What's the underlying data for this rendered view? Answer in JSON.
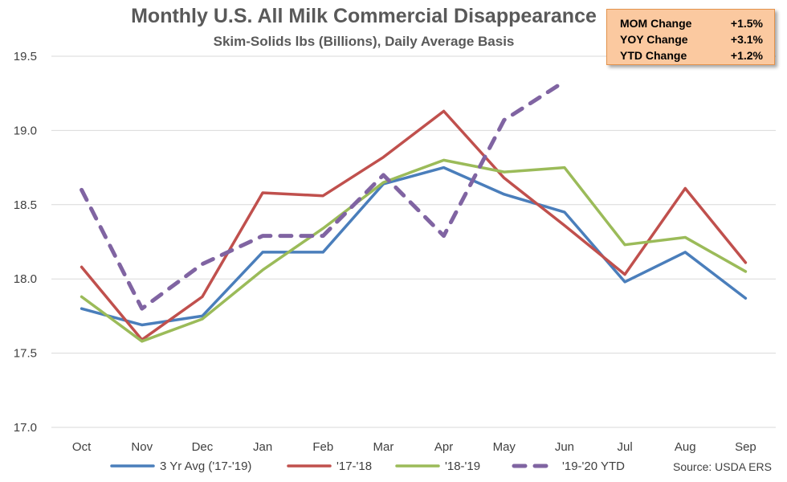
{
  "title": "Monthly U.S. All Milk Commercial Disappearance",
  "subtitle": "Skim-Solids lbs (Billions), Daily Average Basis",
  "changes": [
    {
      "label": "MOM Change",
      "value": "+1.5%"
    },
    {
      "label": "YOY Change",
      "value": "+3.1%"
    },
    {
      "label": "YTD Change",
      "value": "+1.2%"
    }
  ],
  "source": "Source: USDA ERS",
  "chart_data": {
    "type": "line",
    "categories": [
      "Oct",
      "Nov",
      "Dec",
      "Jan",
      "Feb",
      "Mar",
      "Apr",
      "May",
      "Jun",
      "Jul",
      "Aug",
      "Sep"
    ],
    "ylim": [
      17.0,
      19.5
    ],
    "yticks": [
      "17.0",
      "17.5",
      "18.0",
      "18.5",
      "19.0",
      "19.5"
    ],
    "grid": true,
    "legend_position": "bottom",
    "series": [
      {
        "name": "3 Yr Avg ('17-'19)",
        "color": "#4a7ebb",
        "dashed": false,
        "values": [
          17.8,
          17.69,
          17.75,
          18.18,
          18.18,
          18.64,
          18.75,
          18.57,
          18.45,
          17.98,
          18.18,
          17.87
        ]
      },
      {
        "name": "'17-'18",
        "color": "#c0504d",
        "dashed": false,
        "values": [
          18.08,
          17.59,
          17.88,
          18.58,
          18.56,
          18.82,
          19.13,
          18.68,
          18.36,
          18.03,
          18.61,
          18.11
        ]
      },
      {
        "name": "'18-'19",
        "color": "#9bbb59",
        "dashed": false,
        "values": [
          17.88,
          17.58,
          17.73,
          18.06,
          18.34,
          18.65,
          18.8,
          18.72,
          18.75,
          18.23,
          18.28,
          18.05
        ]
      },
      {
        "name": "'19-'20 YTD",
        "color": "#8064a2",
        "dashed": true,
        "values": [
          18.6,
          17.8,
          18.1,
          18.29,
          18.29,
          18.7,
          18.29,
          19.07,
          19.33,
          null,
          null,
          null
        ]
      }
    ]
  }
}
